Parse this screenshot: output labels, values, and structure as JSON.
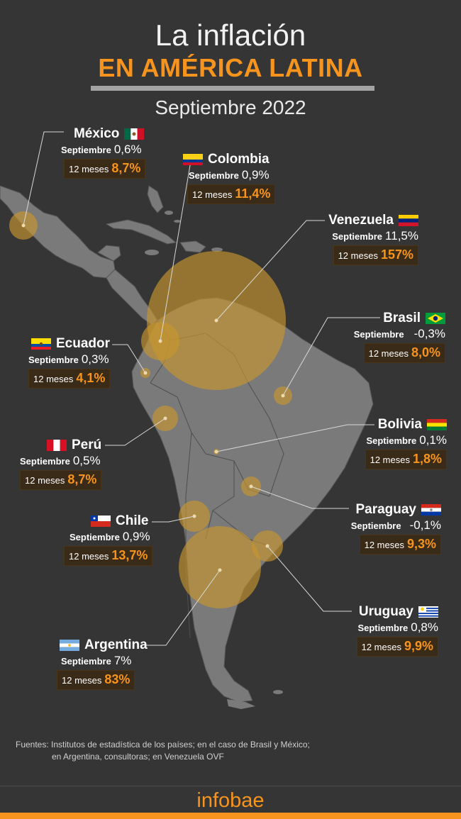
{
  "title_line1": "La inflación",
  "title_line2": "EN AMÉRICA LATINA",
  "subtitle": "Septiembre 2022",
  "label_month": "Septiembre",
  "label_year": "12 meses",
  "countries": {
    "mexico": {
      "name": "México",
      "month": "0,6%",
      "year": "8,7%"
    },
    "colombia": {
      "name": "Colombia",
      "month": "0,9%",
      "year": "11,4%"
    },
    "venezuela": {
      "name": "Venezuela",
      "month": "11,5%",
      "year": "157%"
    },
    "brasil": {
      "name": "Brasil",
      "month": "-0,3%",
      "year": "8,0%"
    },
    "ecuador": {
      "name": "Ecuador",
      "month": "0,3%",
      "year": "4,1%"
    },
    "peru": {
      "name": "Perú",
      "month": "0,5%",
      "year": "8,7%"
    },
    "bolivia": {
      "name": "Bolivia",
      "month": "0,1%",
      "year": "1,8%"
    },
    "paraguay": {
      "name": "Paraguay",
      "month": "-0,1%",
      "year": "9,3%"
    },
    "chile": {
      "name": "Chile",
      "month": "0,9%",
      "year": "13,7%"
    },
    "uruguay": {
      "name": "Uruguay",
      "month": "0,8%",
      "year": "9,9%"
    },
    "argentina": {
      "name": "Argentina",
      "month": "7%",
      "year": "83%"
    }
  },
  "sources_line1": "Fuentes: Institutos de estadística de los países; en el caso de Brasil y México;",
  "sources_line2": "en Argentina, consultoras; en Venezuela OVF",
  "logo": "infobae",
  "colors": {
    "accent": "#f7941d",
    "background": "#353535",
    "land": "#7a7a7a",
    "bubble": "#c8962e"
  }
}
